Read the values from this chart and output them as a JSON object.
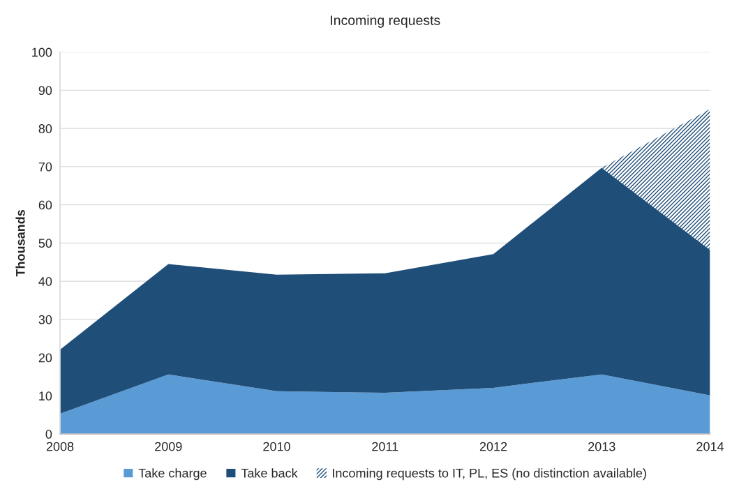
{
  "chart_data": {
    "type": "area",
    "title": "Incoming requests",
    "ylabel": "Thousands",
    "x": [
      2008,
      2009,
      2010,
      2011,
      2012,
      2013,
      2014
    ],
    "xlim": [
      2008,
      2014
    ],
    "xticks": [
      2008,
      2009,
      2010,
      2011,
      2012,
      2013,
      2014
    ],
    "ylim": [
      0,
      100
    ],
    "yticks": [
      0,
      10,
      20,
      30,
      40,
      50,
      60,
      70,
      80,
      90,
      100
    ],
    "stacked": true,
    "grid": "y",
    "legend": "bottom",
    "series": [
      {
        "name": "Take charge",
        "color": "#5b9bd5",
        "values": [
          5.3,
          15.6,
          11.2,
          10.8,
          12.1,
          15.6,
          10.1
        ]
      },
      {
        "name": "Take back",
        "color": "#1f4e79",
        "values": [
          16.8,
          28.9,
          30.5,
          31.3,
          35.0,
          54.1,
          38.1
        ]
      },
      {
        "name": "Incoming requests to IT, PL, ES (no distinction available)",
        "color": "#1f4e79",
        "values": [
          null,
          null,
          null,
          null,
          null,
          0,
          36.9
        ]
      }
    ]
  }
}
